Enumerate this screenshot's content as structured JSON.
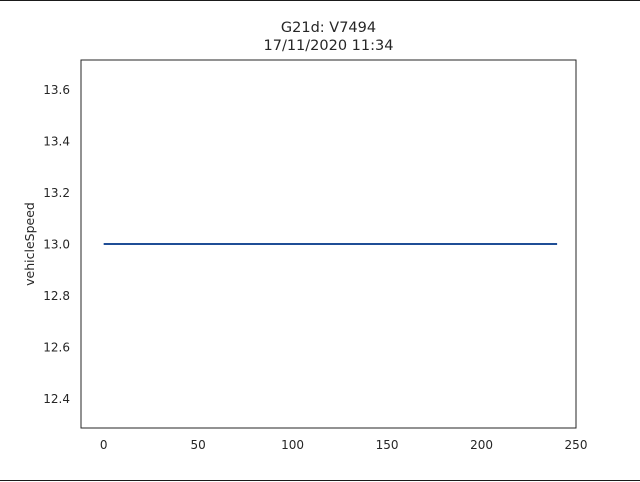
{
  "chart_data": {
    "type": "line",
    "title_lines": [
      "G21d: V7494",
      "17/11/2020 11:34"
    ],
    "xlabel": "",
    "ylabel": "vehicleSpeed",
    "xlim": [
      -12,
      250
    ],
    "ylim": [
      12.285,
      13.715
    ],
    "x_ticks": [
      0,
      50,
      100,
      150,
      200,
      250
    ],
    "y_ticks": [
      12.4,
      12.6,
      12.8,
      13.0,
      13.2,
      13.4,
      13.6
    ],
    "grid": false,
    "series": [
      {
        "color": "#1f4e96",
        "x": [
          0,
          240
        ],
        "y": [
          13.0,
          13.0
        ]
      }
    ]
  }
}
